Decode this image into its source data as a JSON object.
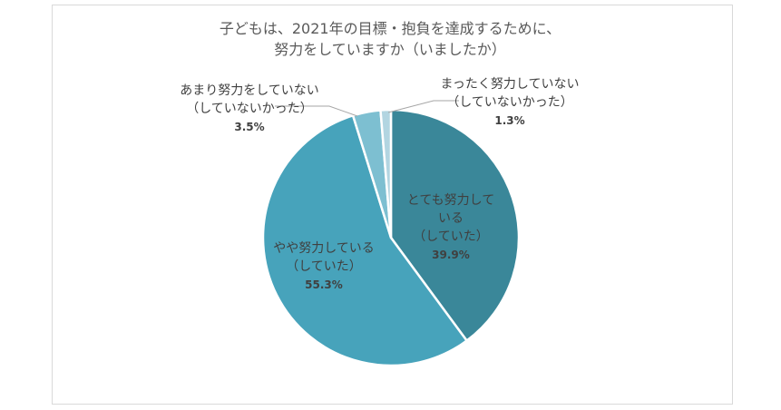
{
  "chart_data": {
    "type": "pie",
    "title_lines": [
      "子どもは、2021年の目標・抱負を達成するために、",
      "努力をしていますか（いましたか）"
    ],
    "slices": [
      {
        "label_lines": [
          "とても努力して",
          "いる",
          "（していた）"
        ],
        "value": 39.9,
        "value_label": "39.9%",
        "color": "#3a8799"
      },
      {
        "label_lines": [
          "やや努力している",
          "（していた）"
        ],
        "value": 55.3,
        "value_label": "55.3%",
        "color": "#47a3bb"
      },
      {
        "label_lines": [
          "あまり努力をしていない",
          "（していないかった）"
        ],
        "value": 3.5,
        "value_label": "3.5%",
        "color": "#7dbfd1"
      },
      {
        "label_lines": [
          "まったく努力していない",
          "（していないかった）"
        ],
        "value": 1.3,
        "value_label": "1.3%",
        "color": "#b2d5e1"
      }
    ],
    "legend": "none"
  }
}
